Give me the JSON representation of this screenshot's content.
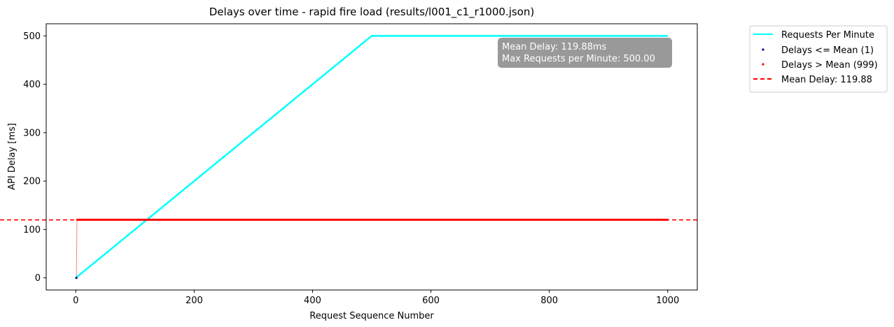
{
  "chart_data": {
    "type": "line",
    "title": "Delays over time - rapid fire load (results/l001_c1_r1000.json)",
    "xlabel": "Request Sequence Number",
    "ylabel": "API Delay [ms]",
    "xlim": [
      -50,
      1050
    ],
    "ylim": [
      -25,
      525
    ],
    "x_ticks": [
      0,
      200,
      400,
      600,
      800,
      1000
    ],
    "y_ticks": [
      0,
      100,
      200,
      300,
      400,
      500
    ],
    "grid": false,
    "legend_position": "outside-upper-right",
    "series": [
      {
        "name": "Requests Per Minute",
        "kind": "line",
        "color": "#00ffff",
        "x": [
          1,
          500,
          1000
        ],
        "y": [
          1,
          500,
          500
        ]
      },
      {
        "name": "Delays <= Mean (1)",
        "kind": "scatter",
        "color": "#00008b",
        "x": [
          1
        ],
        "y": [
          0
        ]
      },
      {
        "name": "Delays > Mean (999)",
        "kind": "scatter",
        "color": "#ff0000",
        "x_range": [
          2,
          1000
        ],
        "y_value": 120
      },
      {
        "name": "Mean Delay: 119.88",
        "kind": "hline",
        "color": "#ff0000",
        "y": 119.88
      }
    ],
    "delay_trace": {
      "color": "#ff0000",
      "x": [
        1,
        2,
        1000
      ],
      "y": [
        0,
        120,
        120
      ]
    },
    "annotation": {
      "lines": [
        "Mean Delay: 119.88ms",
        "Max Requests per Minute:  500.00"
      ],
      "background": "#999999"
    }
  }
}
